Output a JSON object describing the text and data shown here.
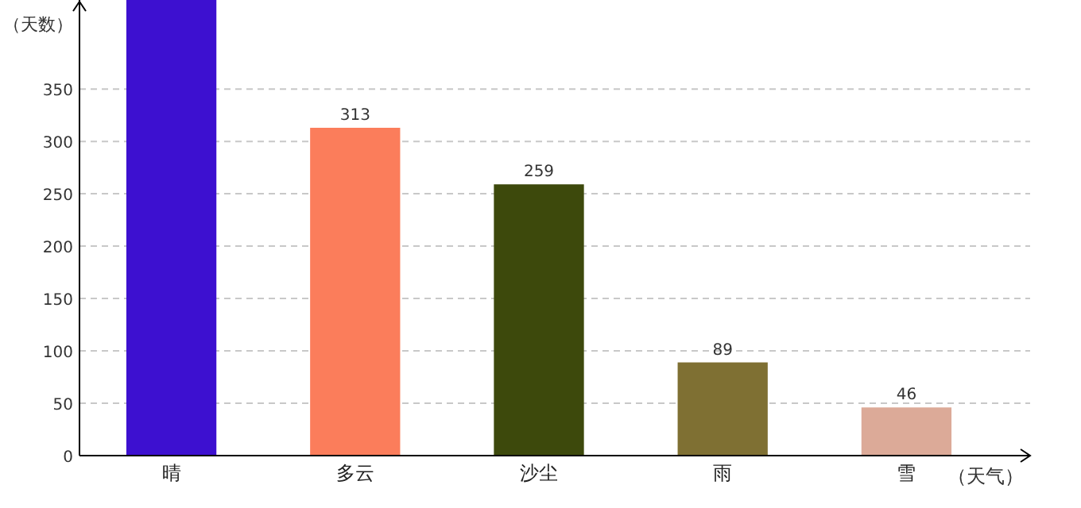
{
  "chart_data": {
    "type": "bar",
    "xlabel": "（天气）",
    "ylabel": "（天数）",
    "categories": [
      "晴",
      "多云",
      "沙尘",
      "雨",
      "雪"
    ],
    "values": [
      435,
      313,
      259,
      89,
      46
    ],
    "colors": [
      "#3d10d0",
      "#fb7d5b",
      "#3d490c",
      "#7f7033",
      "#dcaa98"
    ],
    "value_labels": [
      null,
      "313",
      "259",
      "89",
      "46"
    ],
    "ylim": [
      0,
      435
    ],
    "yticks": [
      0,
      50,
      100,
      150,
      200,
      250,
      300,
      350
    ],
    "grid": "y"
  }
}
